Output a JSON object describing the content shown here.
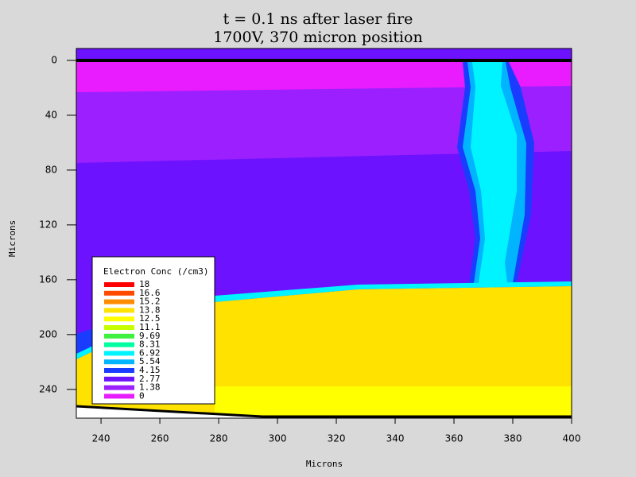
{
  "chart_data": {
    "type": "contour",
    "title": "t = 0.1 ns after laser fire",
    "subtitle": "1700V, 370 micron position",
    "x_label": "Microns",
    "y_label": "Microns",
    "xlim": [
      231.6,
      400
    ],
    "xticks": [
      240,
      260,
      280,
      300,
      320,
      340,
      360,
      380,
      400
    ],
    "ylim": [
      -8.7,
      261
    ],
    "yticks": [
      0,
      40,
      80,
      120,
      160,
      200,
      240
    ],
    "y_inverted": true,
    "colorbar": {
      "title": "Electron Conc (/cm3)",
      "levels": [
        18,
        16.6,
        15.2,
        13.8,
        12.5,
        11.1,
        9.69,
        8.31,
        6.92,
        5.54,
        4.15,
        2.77,
        1.38,
        0
      ],
      "colors": [
        "#ff0000",
        "#ff4a00",
        "#ff8c00",
        "#ffe200",
        "#ffff00",
        "#c8ff00",
        "#40f040",
        "#00ffa0",
        "#00f4ff",
        "#00b4ff",
        "#1a3cff",
        "#6c12ff",
        "#9c20ff",
        "#e81cff"
      ]
    }
  }
}
